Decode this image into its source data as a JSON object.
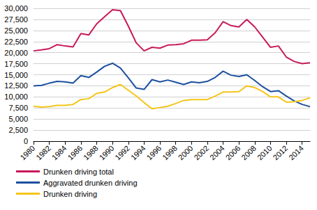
{
  "chart_data": {
    "type": "line",
    "x": [
      1980,
      1981,
      1982,
      1983,
      1984,
      1985,
      1986,
      1987,
      1988,
      1989,
      1990,
      1991,
      1992,
      1993,
      1994,
      1995,
      1996,
      1997,
      1998,
      1999,
      2000,
      2001,
      2002,
      2003,
      2004,
      2005,
      2006,
      2007,
      2008,
      2009,
      2010,
      2011,
      2012,
      2013,
      2014,
      2015
    ],
    "series": [
      {
        "name": "Drunken driving total",
        "color": "#c8195a",
        "values": [
          20400,
          20600,
          20900,
          21800,
          21500,
          21300,
          24300,
          24000,
          26500,
          28100,
          29700,
          29500,
          26000,
          22200,
          20400,
          21200,
          21000,
          21700,
          21800,
          22000,
          22800,
          22800,
          22900,
          24500,
          27000,
          26100,
          25800,
          27500,
          25800,
          23500,
          21200,
          21500,
          19000,
          18000,
          17500,
          17700
        ]
      },
      {
        "name": "Aggravated drunken driving",
        "color": "#1c4fa0",
        "values": [
          12500,
          12600,
          13100,
          13500,
          13400,
          13100,
          14800,
          14400,
          15600,
          16900,
          17600,
          16500,
          14300,
          12000,
          11700,
          13900,
          13400,
          13800,
          13300,
          12800,
          13400,
          13200,
          13500,
          14400,
          15800,
          14900,
          14600,
          15000,
          13700,
          12300,
          11200,
          11400,
          10200,
          9100,
          8300,
          7800
        ]
      },
      {
        "name": "Drunken driving",
        "color": "#f5c518",
        "values": [
          7900,
          7700,
          7800,
          8100,
          8100,
          8300,
          9400,
          9600,
          10800,
          11100,
          12100,
          12800,
          11500,
          10200,
          8700,
          7300,
          7600,
          7900,
          8500,
          9200,
          9400,
          9400,
          9400,
          10200,
          11100,
          11100,
          11200,
          12500,
          12100,
          11200,
          10000,
          10000,
          8800,
          8900,
          9200,
          9800
        ]
      }
    ],
    "xlim": [
      1980,
      2015
    ],
    "xticks": [
      1980,
      1982,
      1984,
      1986,
      1988,
      1990,
      1992,
      1994,
      1996,
      1998,
      2000,
      2002,
      2004,
      2006,
      2008,
      2010,
      2012,
      2014
    ],
    "ylim": [
      0,
      30000
    ],
    "yticks": [
      0,
      {
        "value": 2500,
        "label": "2,500"
      },
      {
        "value": 5000,
        "label": "5,000"
      },
      {
        "value": 7500,
        "label": "7,500"
      },
      {
        "value": 10000,
        "label": "10,000"
      },
      {
        "value": 12500,
        "label": "12,500"
      },
      {
        "value": 15000,
        "label": "15,000"
      },
      {
        "value": 17500,
        "label": "17,500"
      },
      {
        "value": 20000,
        "label": "20,000"
      },
      {
        "value": 22500,
        "label": "22,500"
      },
      {
        "value": 25000,
        "label": "25,000"
      },
      {
        "value": 27500,
        "label": "27,500"
      },
      {
        "value": 30000,
        "label": "30,000"
      }
    ],
    "grid": true,
    "legend": "bottom"
  }
}
